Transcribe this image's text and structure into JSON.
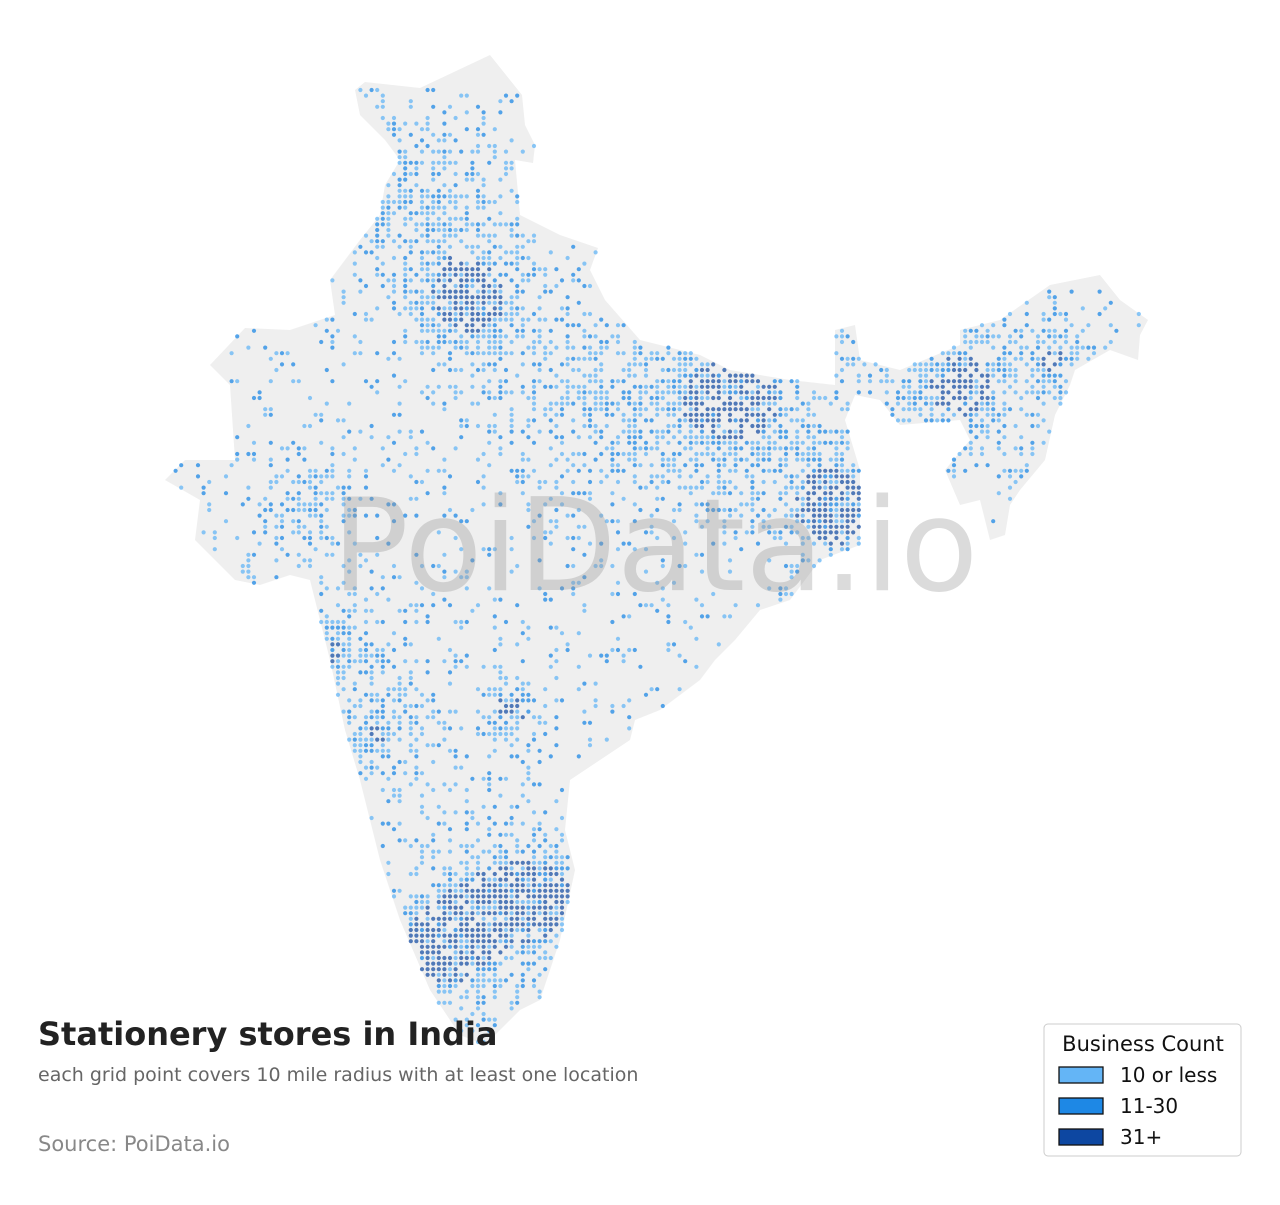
{
  "title": "Stationery stores in India",
  "subtitle": "each grid point covers 10 mile radius with at least one location",
  "source": "Source: PoiData.io",
  "watermark": "PoiData.io",
  "legend": {
    "title": "Business Count",
    "items": [
      {
        "label": "10 or less",
        "color": "#64b5f6"
      },
      {
        "label": "11-30",
        "color": "#1e88e5"
      },
      {
        "label": "31+",
        "color": "#0d47a1"
      }
    ]
  }
}
